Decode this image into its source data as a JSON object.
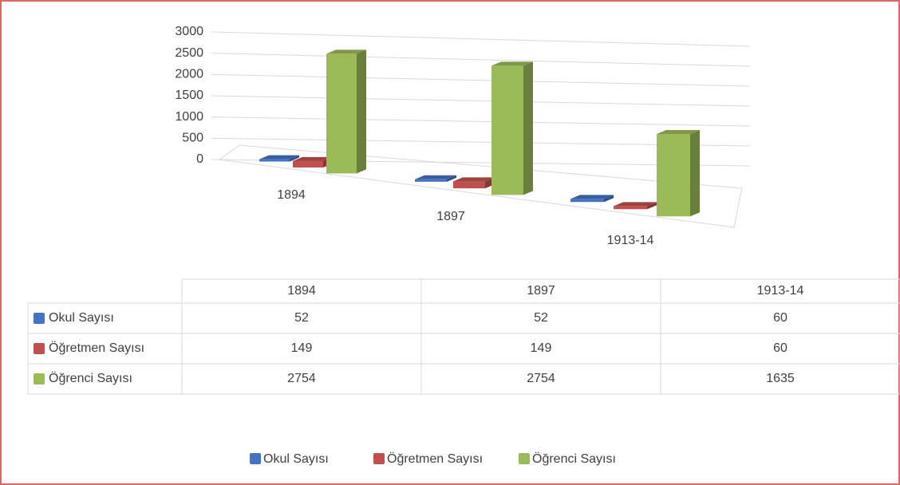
{
  "chart_data": {
    "type": "bar3d",
    "categories": [
      "1894",
      "1897",
      "1913-14"
    ],
    "series": [
      {
        "name": "Okul Sayısı",
        "color": "#4472c4",
        "values": [
          52,
          52,
          60
        ]
      },
      {
        "name": "Öğretmen Sayısı",
        "color": "#c0504d",
        "values": [
          149,
          149,
          60
        ]
      },
      {
        "name": "Öğrenci Sayısı",
        "color": "#9bbb59",
        "values": [
          2754,
          2754,
          1635
        ]
      }
    ],
    "ylim": [
      0,
      3000
    ],
    "yticks": [
      0,
      500,
      1000,
      1500,
      2000,
      2500,
      3000
    ],
    "grid": true,
    "legend": "bottom",
    "data_table": true
  }
}
